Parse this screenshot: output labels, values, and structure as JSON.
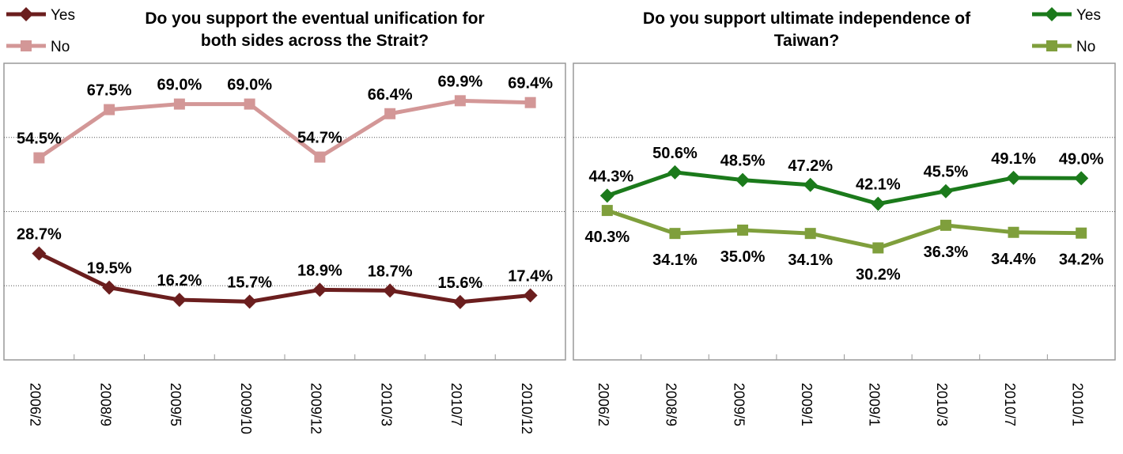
{
  "chart_data": [
    {
      "type": "line",
      "title": "Do you support the eventual unification for both sides across the Strait?",
      "title_lines": [
        "Do you support the eventual unification for",
        "both sides across the Strait?"
      ],
      "categories": [
        "2006/2",
        "2008/9",
        "2009/5",
        "2009/10",
        "2009/12",
        "2010/3",
        "2010/7",
        "2010/12"
      ],
      "series": [
        {
          "name": "Yes",
          "color": "#6b1e1e",
          "marker": "diamond",
          "values": [
            28.7,
            19.5,
            16.2,
            15.7,
            18.9,
            18.7,
            15.6,
            17.4
          ],
          "value_labels": [
            "28.7%",
            "19.5%",
            "16.2%",
            "15.7%",
            "18.9%",
            "18.7%",
            "15.6%",
            "17.4%"
          ]
        },
        {
          "name": "No",
          "color": "#d39797",
          "marker": "square",
          "values": [
            54.5,
            67.5,
            69.0,
            69.0,
            54.7,
            66.4,
            69.9,
            69.4
          ],
          "value_labels": [
            "54.5%",
            "67.5%",
            "69.0%",
            "69.0%",
            "54.7%",
            "66.4%",
            "69.9%",
            "69.4%"
          ]
        }
      ],
      "ylim": [
        0,
        80
      ],
      "yticks": [
        20,
        40,
        60
      ],
      "grid": true,
      "legend": "top-left"
    },
    {
      "type": "line",
      "title": "Do you support ultimate independence of Taiwan?",
      "title_lines": [
        "Do you support ultimate independence of",
        "Taiwan?"
      ],
      "categories": [
        "2006/2",
        "2008/9",
        "2009/5",
        "2009/1",
        "2009/1",
        "2010/3",
        "2010/7",
        "2010/1"
      ],
      "series": [
        {
          "name": "Yes",
          "color": "#1b7a1b",
          "marker": "diamond",
          "values": [
            44.3,
            50.6,
            48.5,
            47.2,
            42.1,
            45.5,
            49.1,
            49.0
          ],
          "value_labels": [
            "44.3%",
            "50.6%",
            "48.5%",
            "47.2%",
            "42.1%",
            "45.5%",
            "49.1%",
            "49.0%"
          ]
        },
        {
          "name": "No",
          "color": "#7f9f3c",
          "marker": "square",
          "values": [
            40.3,
            34.1,
            35.0,
            34.1,
            30.2,
            36.3,
            34.4,
            34.2
          ],
          "value_labels": [
            "40.3%",
            "34.1%",
            "35.0%",
            "34.1%",
            "30.2%",
            "36.3%",
            "34.4%",
            "34.2%"
          ]
        }
      ],
      "ylim": [
        0,
        80
      ],
      "yticks": [
        20,
        40,
        60
      ],
      "grid": true,
      "legend": "top-right"
    }
  ]
}
